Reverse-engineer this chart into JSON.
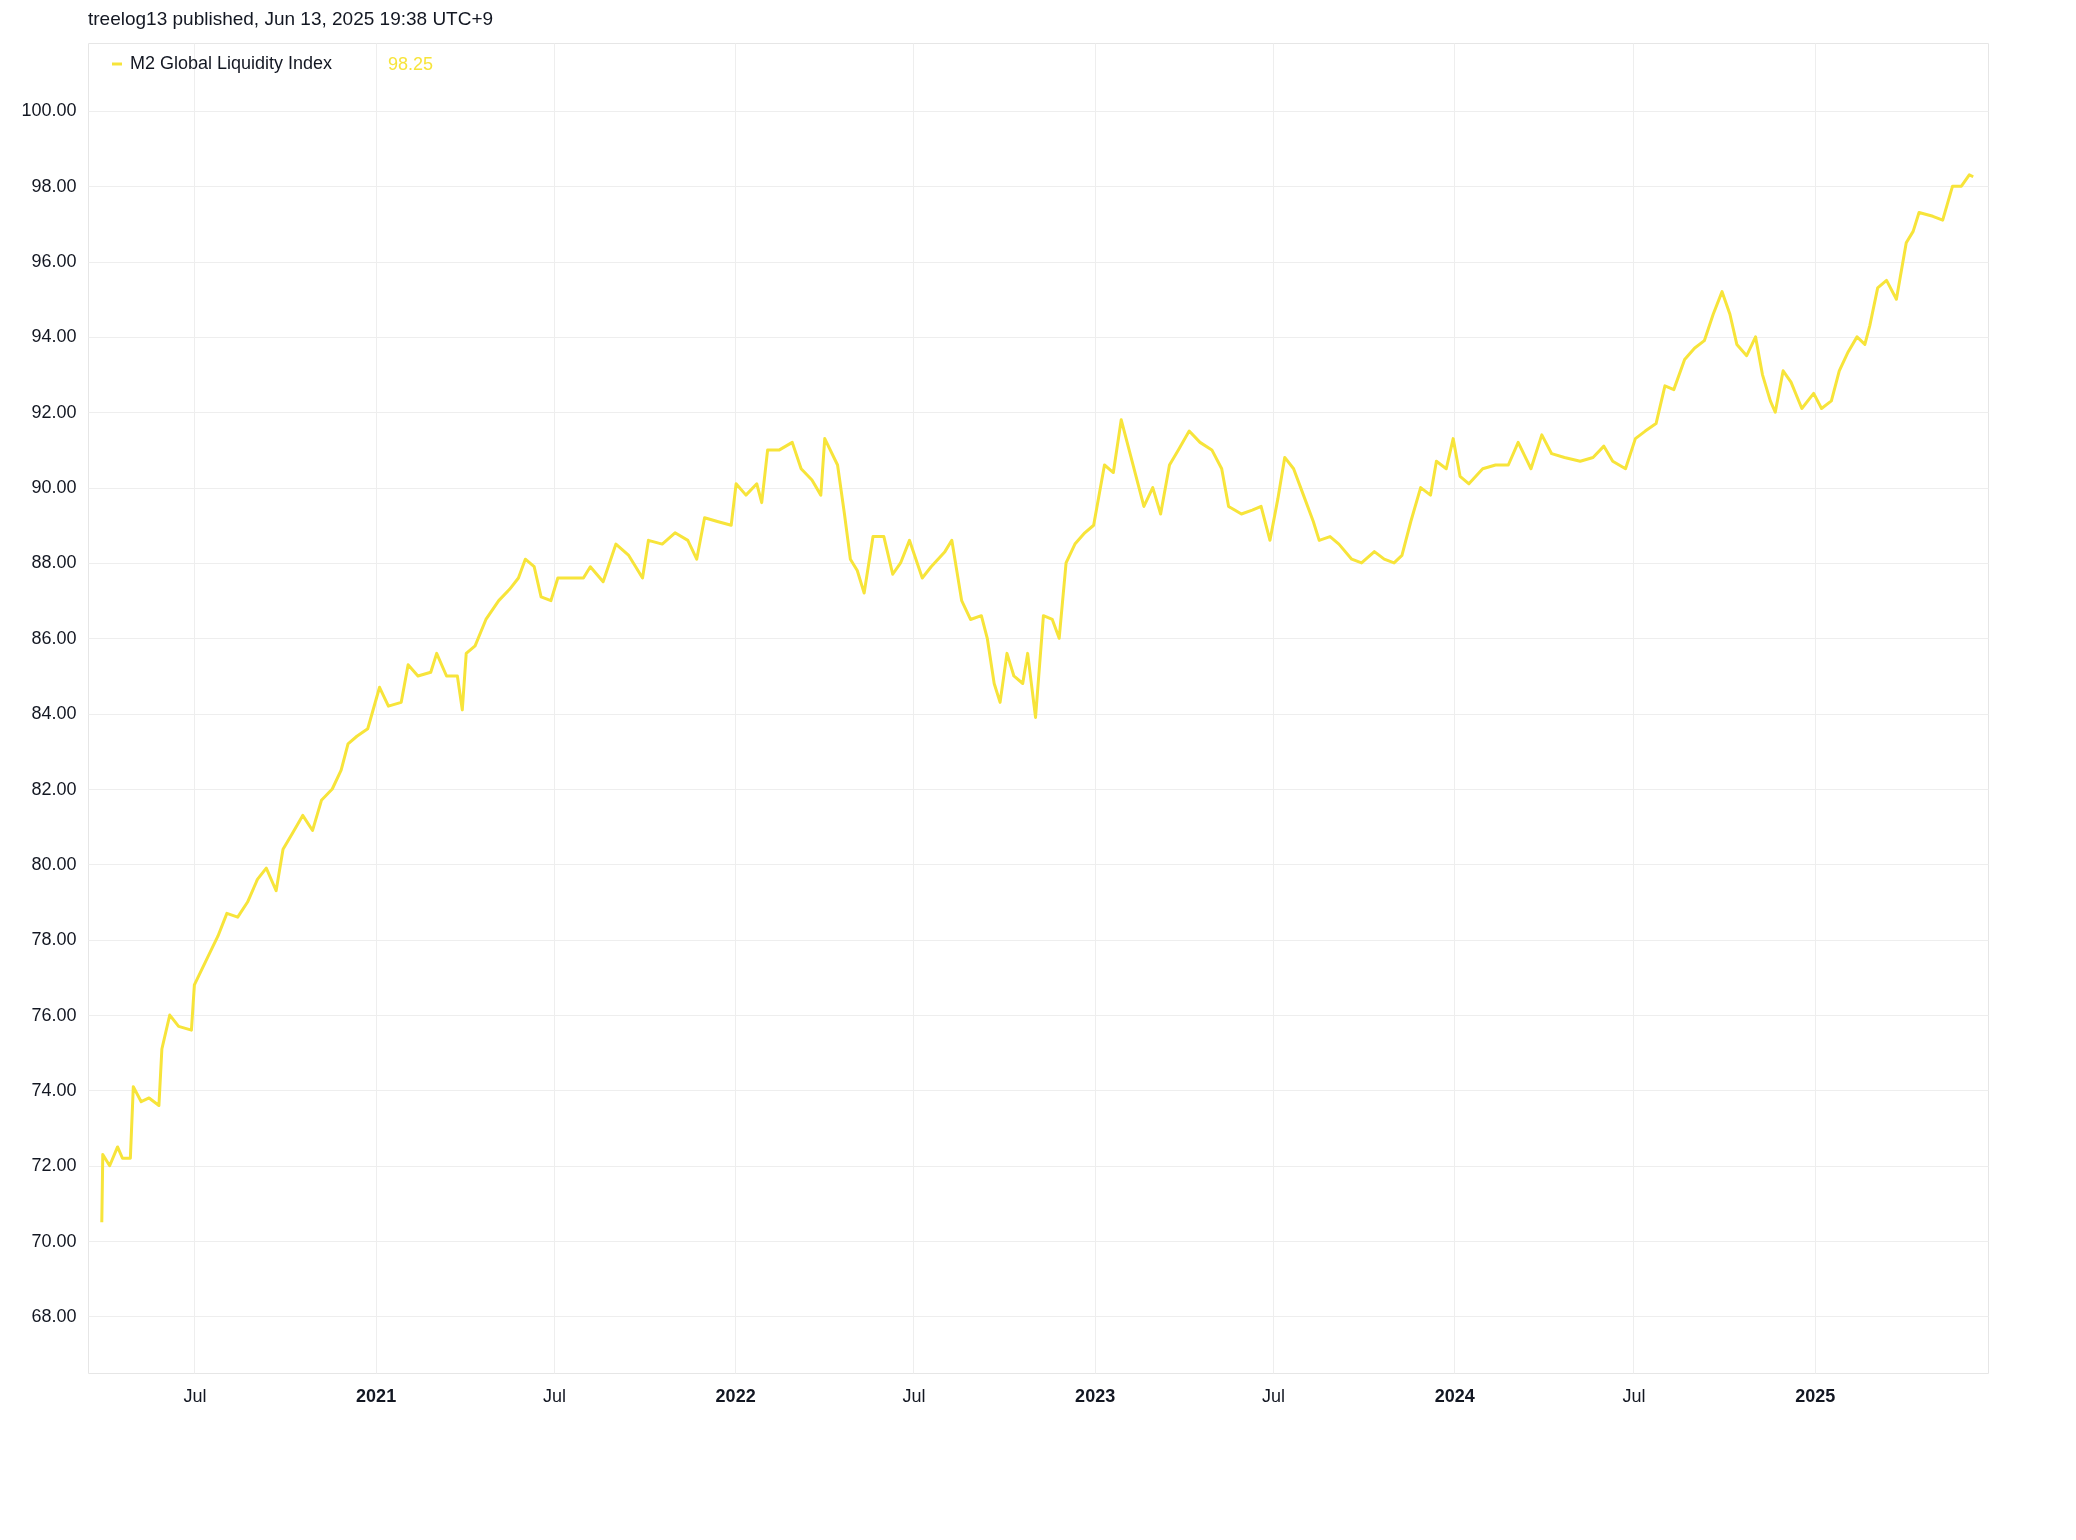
{
  "chart_data": {
    "type": "line",
    "title": "treelog13 published, Jun 13, 2025 19:38 UTC+9",
    "annotations": [
      "98.25"
    ],
    "x": [
      "2020-03-29",
      "2020-03-30",
      "2020-04-06",
      "2020-04-14",
      "2020-04-19",
      "2020-04-27",
      "2020-04-30",
      "2020-05-08",
      "2020-05-16",
      "2020-05-26",
      "2020-05-29",
      "2020-06-06",
      "2020-06-15",
      "2020-06-28",
      "2020-07-01",
      "2020-07-12",
      "2020-07-25",
      "2020-08-03",
      "2020-08-14",
      "2020-08-24",
      "2020-09-03",
      "2020-09-12",
      "2020-09-22",
      "2020-09-29",
      "2020-10-08",
      "2020-10-19",
      "2020-10-29",
      "2020-11-07",
      "2020-11-18",
      "2020-11-27",
      "2020-12-04",
      "2020-12-13",
      "2020-12-24",
      "2021-01-05",
      "2021-01-14",
      "2021-01-27",
      "2021-02-03",
      "2021-02-13",
      "2021-02-26",
      "2021-03-04",
      "2021-03-14",
      "2021-03-25",
      "2021-03-30",
      "2021-04-03",
      "2021-04-12",
      "2021-04-23",
      "2021-05-06",
      "2021-05-17",
      "2021-05-26",
      "2021-06-02",
      "2021-06-11",
      "2021-06-18",
      "2021-06-28",
      "2021-07-05",
      "2021-07-18",
      "2021-07-31",
      "2021-08-07",
      "2021-08-20",
      "2021-09-02",
      "2021-09-15",
      "2021-09-29",
      "2021-10-05",
      "2021-10-19",
      "2021-11-01",
      "2021-11-14",
      "2021-11-23",
      "2021-12-01",
      "2021-12-14",
      "2021-12-28",
      "2022-01-02",
      "2022-01-12",
      "2022-01-23",
      "2022-01-28",
      "2022-02-03",
      "2022-02-15",
      "2022-02-28",
      "2022-03-09",
      "2022-03-20",
      "2022-03-29",
      "2022-04-02",
      "2022-04-15",
      "2022-04-22",
      "2022-04-28",
      "2022-05-05",
      "2022-05-12",
      "2022-05-21",
      "2022-06-01",
      "2022-06-10",
      "2022-06-18",
      "2022-06-27",
      "2022-07-10",
      "2022-07-19",
      "2022-08-02",
      "2022-08-09",
      "2022-08-19",
      "2022-08-28",
      "2022-09-08",
      "2022-09-14",
      "2022-09-21",
      "2022-09-27",
      "2022-10-04",
      "2022-10-11",
      "2022-10-20",
      "2022-10-25",
      "2022-11-02",
      "2022-11-10",
      "2022-11-19",
      "2022-11-26",
      "2022-12-03",
      "2022-12-12",
      "2022-12-22",
      "2022-12-31",
      "2023-01-11",
      "2023-01-20",
      "2023-01-28",
      "2023-02-07",
      "2023-02-20",
      "2023-03-01",
      "2023-03-09",
      "2023-03-18",
      "2023-03-27",
      "2023-04-07",
      "2023-04-18",
      "2023-04-30",
      "2023-05-10",
      "2023-05-17",
      "2023-05-30",
      "2023-06-10",
      "2023-06-19",
      "2023-06-28",
      "2023-07-06",
      "2023-07-13",
      "2023-07-22",
      "2023-08-01",
      "2023-08-11",
      "2023-08-17",
      "2023-08-28",
      "2023-09-06",
      "2023-09-19",
      "2023-09-29",
      "2023-10-12",
      "2023-10-22",
      "2023-11-01",
      "2023-11-09",
      "2023-11-18",
      "2023-11-28",
      "2023-12-08",
      "2023-12-14",
      "2023-12-24",
      "2023-12-31",
      "2024-01-07",
      "2024-01-16",
      "2024-01-30",
      "2024-02-12",
      "2024-02-25",
      "2024-03-06",
      "2024-03-19",
      "2024-03-30",
      "2024-04-09",
      "2024-04-22",
      "2024-05-08",
      "2024-05-21",
      "2024-06-01",
      "2024-06-10",
      "2024-06-23",
      "2024-07-03",
      "2024-07-13",
      "2024-07-24",
      "2024-08-02",
      "2024-08-11",
      "2024-08-22",
      "2024-09-01",
      "2024-09-11",
      "2024-09-20",
      "2024-09-29",
      "2024-10-07",
      "2024-10-14",
      "2024-10-24",
      "2024-11-02",
      "2024-11-09",
      "2024-11-17",
      "2024-11-22",
      "2024-11-30",
      "2024-12-08",
      "2024-12-19",
      "2024-12-31",
      "2025-01-08",
      "2025-01-18",
      "2025-01-26",
      "2025-02-04",
      "2025-02-13",
      "2025-02-21",
      "2025-02-26",
      "2025-03-06",
      "2025-03-15",
      "2025-03-25",
      "2025-04-04",
      "2025-04-11",
      "2025-04-17",
      "2025-05-01",
      "2025-05-11",
      "2025-05-21",
      "2025-05-30",
      "2025-06-07",
      "2025-06-11"
    ],
    "series": [
      {
        "name": "M2 Global Liquidity Index",
        "color": "#f7e43a",
        "values": [
          70.5,
          72.3,
          72.0,
          72.5,
          72.2,
          72.2,
          74.1,
          73.7,
          73.8,
          73.6,
          75.1,
          76.0,
          75.7,
          75.6,
          76.8,
          77.4,
          78.1,
          78.7,
          78.6,
          79.0,
          79.6,
          79.9,
          79.3,
          80.4,
          80.8,
          81.3,
          80.9,
          81.7,
          82.0,
          82.5,
          83.2,
          83.4,
          83.6,
          84.7,
          84.2,
          84.3,
          85.3,
          85.0,
          85.1,
          85.6,
          85.0,
          85.0,
          84.1,
          85.6,
          85.8,
          86.5,
          87.0,
          87.3,
          87.6,
          88.1,
          87.9,
          87.1,
          87.0,
          87.6,
          87.6,
          87.6,
          87.9,
          87.5,
          88.5,
          88.2,
          87.6,
          88.6,
          88.5,
          88.8,
          88.6,
          88.1,
          89.2,
          89.1,
          89.0,
          90.1,
          89.8,
          90.1,
          89.6,
          91.0,
          91.0,
          91.2,
          90.5,
          90.2,
          89.8,
          91.3,
          90.6,
          89.3,
          88.1,
          87.8,
          87.2,
          88.7,
          88.7,
          87.7,
          88.0,
          88.6,
          87.6,
          87.9,
          88.3,
          88.6,
          87.0,
          86.5,
          86.6,
          86.0,
          84.8,
          84.3,
          85.6,
          85.0,
          84.8,
          85.6,
          83.9,
          86.6,
          86.5,
          86.0,
          88.0,
          88.5,
          88.8,
          89.0,
          90.6,
          90.4,
          91.8,
          90.8,
          89.5,
          90.0,
          89.3,
          90.6,
          91.0,
          91.5,
          91.2,
          91.0,
          90.5,
          89.5,
          89.3,
          89.4,
          89.5,
          88.6,
          89.7,
          90.8,
          90.5,
          89.8,
          89.1,
          88.6,
          88.7,
          88.5,
          88.1,
          88.0,
          88.3,
          88.1,
          88.0,
          88.2,
          89.1,
          90.0,
          89.8,
          90.7,
          90.5,
          91.3,
          90.3,
          90.1,
          90.5,
          90.6,
          90.6,
          91.2,
          90.5,
          91.4,
          90.9,
          90.8,
          90.7,
          90.8,
          91.1,
          90.7,
          90.5,
          91.3,
          91.5,
          91.7,
          92.7,
          92.6,
          93.4,
          93.7,
          93.9,
          94.6,
          95.2,
          94.6,
          93.8,
          93.5,
          94.0,
          93.0,
          92.3,
          92.0,
          93.1,
          92.8,
          92.1,
          92.5,
          92.1,
          92.3,
          93.1,
          93.6,
          94.0,
          93.8,
          94.3,
          95.3,
          95.5,
          95.0,
          96.5,
          96.8,
          97.3,
          97.2,
          97.1,
          98.0,
          98.0,
          98.3,
          98.25
        ]
      }
    ],
    "xlim": [
      "2020-03-15",
      "2025-06-26"
    ],
    "xticks": [
      {
        "value": "2020-07",
        "label": "Jul"
      },
      {
        "value": "2021",
        "label": "2021"
      },
      {
        "value": "2021-07",
        "label": "Jul"
      },
      {
        "value": "2022",
        "label": "2022"
      },
      {
        "value": "2022-07",
        "label": "Jul"
      },
      {
        "value": "2023",
        "label": "2023"
      },
      {
        "value": "2023-07",
        "label": "Jul"
      },
      {
        "value": "2024",
        "label": "2024"
      },
      {
        "value": "2024-07",
        "label": "Jul"
      },
      {
        "value": "2025",
        "label": "2025"
      }
    ],
    "ylim": [
      66.5,
      101.8
    ],
    "yticks": [
      {
        "value": 68,
        "label": "68.00"
      },
      {
        "value": 70,
        "label": "70.00"
      },
      {
        "value": 72,
        "label": "72.00"
      },
      {
        "value": 74,
        "label": "74.00"
      },
      {
        "value": 76,
        "label": "76.00"
      },
      {
        "value": 78,
        "label": "78.00"
      },
      {
        "value": 80,
        "label": "80.00"
      },
      {
        "value": 82,
        "label": "82.00"
      },
      {
        "value": 84,
        "label": "84.00"
      },
      {
        "value": 86,
        "label": "86.00"
      },
      {
        "value": 88,
        "label": "88.00"
      },
      {
        "value": 90,
        "label": "90.00"
      },
      {
        "value": 92,
        "label": "92.00"
      },
      {
        "value": 94,
        "label": "94.00"
      },
      {
        "value": 96,
        "label": "96.00"
      },
      {
        "value": 98,
        "label": "98.00"
      },
      {
        "value": 100,
        "label": "100.00"
      }
    ],
    "grid": true,
    "legend": "top left"
  }
}
